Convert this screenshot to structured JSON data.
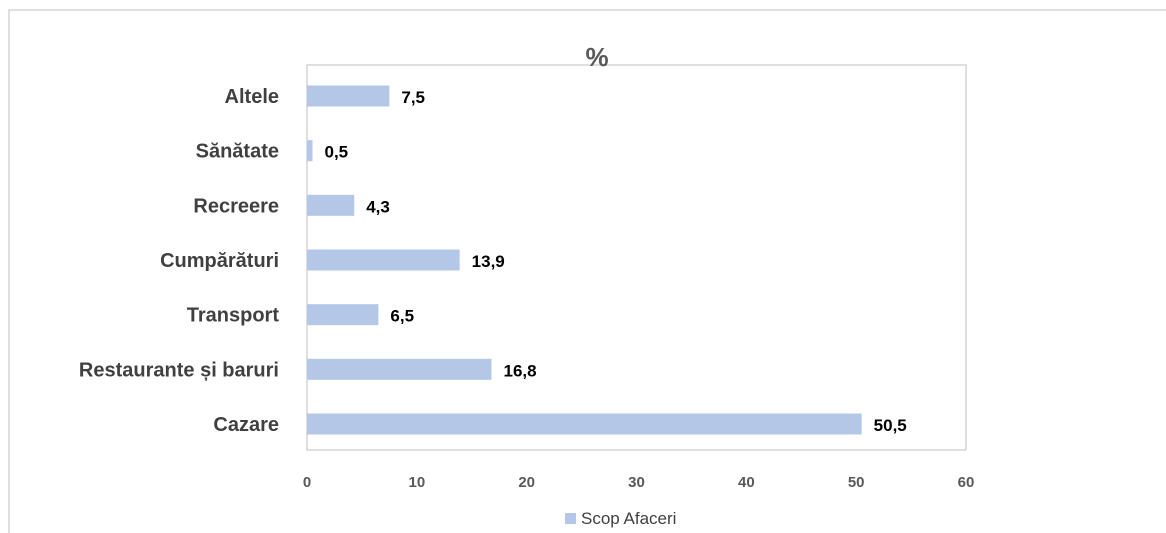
{
  "chart_data": {
    "type": "bar",
    "orientation": "horizontal",
    "title": "%",
    "categories": [
      "Altele",
      "Sănătate",
      "Recreere",
      "Cumpărături",
      "Transport",
      "Restaurante și baruri",
      "Cazare"
    ],
    "series": [
      {
        "name": "Scop Afaceri",
        "values": [
          7.5,
          0.5,
          4.3,
          13.9,
          6.5,
          16.8,
          50.5
        ],
        "value_labels": [
          "7,5",
          "0,5",
          "4,3",
          "13,9",
          "6,5",
          "16,8",
          "50,5"
        ]
      }
    ],
    "x_ticks": [
      "0",
      "10",
      "20",
      "30",
      "40",
      "50",
      "60"
    ],
    "xlim": [
      0,
      60
    ],
    "grid": false,
    "legend_position": "bottom",
    "colors": {
      "bar": "#b4c7e7",
      "plot_border": "#bfbfbf",
      "outer_border": "#bfbfbf"
    }
  }
}
